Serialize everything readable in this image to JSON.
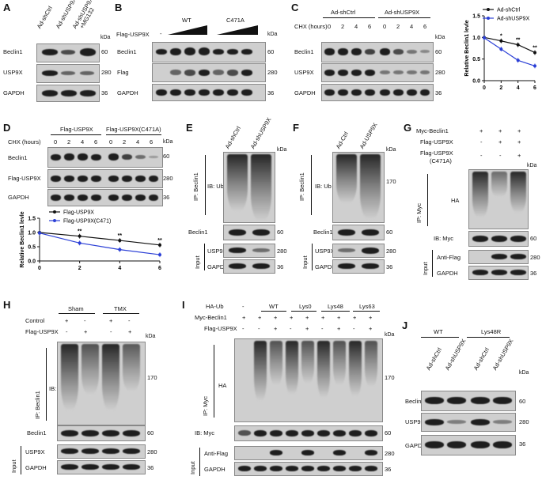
{
  "panels": {
    "A": {
      "letter": "A",
      "lanes": [
        "Ad-shCtrl",
        "Ad-shUSP9X",
        "Ad-shUSP9X\n+MG132"
      ],
      "rows": [
        "Beclin1",
        "USP9X",
        "GAPDH"
      ],
      "kda_label": "kDa",
      "mw": [
        "60",
        "280",
        "36"
      ]
    },
    "B": {
      "letter": "B",
      "flag_label": "Flag-USP9X",
      "minus": "-",
      "wt": "WT",
      "c471a": "C471A",
      "kda_label": "kDa",
      "rows": [
        "Beclin1",
        "Flag",
        "GAPDH"
      ],
      "mw": [
        "60",
        "280",
        "36"
      ]
    },
    "C": {
      "letter": "C",
      "groups": [
        "Ad-shCtrl",
        "Ad-shUSP9X"
      ],
      "chx_label": "CHX (hours)",
      "times": [
        "0",
        "2",
        "4",
        "6",
        "0",
        "2",
        "4",
        "6"
      ],
      "kda_label": "kDa",
      "rows": [
        "Beclin1",
        "USP9X",
        "GAPDH"
      ],
      "mw": [
        "60",
        "280",
        "36"
      ]
    },
    "D": {
      "letter": "D",
      "groups": [
        "Flag-USP9X",
        "Flag-USP9X(C471A)"
      ],
      "chx_label": "CHX (hours)",
      "times": [
        "0",
        "2",
        "4",
        "6",
        "0",
        "2",
        "4",
        "6"
      ],
      "kda_label": "kDa",
      "rows": [
        "Beclin1",
        "Flag-USP9X",
        "GAPDH"
      ],
      "mw": [
        "60",
        "280",
        "36"
      ]
    },
    "E": {
      "letter": "E",
      "lanes": [
        "Ad-shCtrl",
        "Ad-shUSP9X"
      ],
      "kda_label": "kDa",
      "ip": "IP: Beclin1",
      "ib": "IB: Ub",
      "rows": [
        "Beclin1",
        "USP9X",
        "GAPDH"
      ],
      "input": "Input",
      "mw": [
        "60",
        "280",
        "36"
      ]
    },
    "F": {
      "letter": "F",
      "lanes": [
        "Ad-Ctrl",
        "Ad-USP9X"
      ],
      "kda_label": "kDa",
      "ip": "IP: Beclin1",
      "ib": "IB: Ub",
      "mw_top": "170",
      "rows": [
        "Beclin1",
        "USP9X",
        "GAPDH"
      ],
      "input": "Input",
      "mw": [
        "60",
        "280",
        "36"
      ]
    },
    "G": {
      "letter": "G",
      "conds": [
        "Myc-Beclin1",
        "Flag-USP9X",
        "Flag-USP9X",
        "(C471A)"
      ],
      "signs": [
        [
          "+",
          "+",
          "+"
        ],
        [
          "-",
          "+",
          "+"
        ],
        [
          "-",
          "-",
          "+"
        ]
      ],
      "kda_label": "kDa",
      "ip": "IP: Myc",
      "ha": "HA",
      "ib_myc": "IB: Myc",
      "anti_flag": "Anti-Flag",
      "gapdh": "GAPDH",
      "input": "Input",
      "mw": [
        "60",
        "280",
        "36"
      ]
    },
    "H": {
      "letter": "H",
      "groups": [
        "Sham",
        "TMX"
      ],
      "conds": [
        "Control",
        "Flag-USP9X"
      ],
      "signs": [
        [
          "+",
          "-",
          "+",
          "-"
        ],
        [
          "-",
          "+",
          "-",
          "+"
        ]
      ],
      "kda_label": "kDa",
      "ip": "IP: Beclin1",
      "ib": "IB: Ub",
      "mw_top": "170",
      "rows": [
        "Beclin1",
        "USP9X",
        "GAPDH"
      ],
      "input": "Input",
      "mw": [
        "60",
        "280",
        "36"
      ]
    },
    "I": {
      "letter": "I",
      "conds": [
        "HA-Ub",
        "Myc-Beclin1",
        "Flag-USP9X"
      ],
      "groups": [
        "-",
        "WT",
        "Lys0",
        "Lys48",
        "Lys63"
      ],
      "signs": [
        [
          "+",
          "+",
          "+",
          "+",
          "+",
          "+",
          "+",
          "+",
          "+"
        ],
        [
          "-",
          "-",
          "+",
          "-",
          "+",
          "-",
          "+",
          "-",
          "+"
        ]
      ],
      "kda_label": "kDa",
      "ip": "IP: Myc",
      "ha": "HA",
      "mw_top": "170",
      "ib_myc": "IB: Myc",
      "anti_flag": "Anti-Flag",
      "gapdh": "GAPDH",
      "input": "Input",
      "mw": [
        "60",
        "280",
        "36"
      ]
    },
    "J": {
      "letter": "J",
      "groups": [
        "WT",
        "Lys48R"
      ],
      "lanes": [
        "Ad-shCtrl",
        "Ad-shUSP9X",
        "Ad-shCtrl",
        "Ad-shUSP9X"
      ],
      "kda_label": "kDa",
      "rows": [
        "Beclin1",
        "USP9X",
        "GAPDH"
      ],
      "mw": [
        "60",
        "280",
        "36"
      ]
    }
  },
  "chart_data": [
    {
      "type": "line",
      "x": [
        0,
        2,
        4,
        6
      ],
      "xlim": [
        0,
        6
      ],
      "ylim": [
        0.0,
        1.5
      ],
      "yticks": [
        "0.0",
        "0.5",
        "1.0",
        "1.5"
      ],
      "ylabel": "Relative Beclin1 levle",
      "series": [
        {
          "name": "Ad-shCtrl",
          "color": "#111111",
          "values": [
            1.0,
            0.92,
            0.83,
            0.65
          ]
        },
        {
          "name": "Ad-shUSP9X",
          "color": "#2b3fd6",
          "values": [
            0.99,
            0.73,
            0.47,
            0.34
          ]
        }
      ],
      "annotations": [
        "*",
        "**",
        "**"
      ],
      "legend": "top-right"
    },
    {
      "type": "line",
      "x": [
        0,
        2,
        4,
        6
      ],
      "xlim": [
        0,
        6
      ],
      "ylim": [
        0.0,
        1.5
      ],
      "yticks": [
        "0.0",
        "0.5",
        "1.0",
        "1.5"
      ],
      "ylabel": "Relative Beclin1 levle",
      "series": [
        {
          "name": "Flag-USP9X",
          "color": "#111111",
          "values": [
            1.0,
            0.87,
            0.72,
            0.56
          ]
        },
        {
          "name": "Flag-USP9X(C471)",
          "color": "#2b3fd6",
          "values": [
            0.98,
            0.63,
            0.4,
            0.22
          ]
        }
      ],
      "annotations": [
        "**",
        "**",
        "**"
      ],
      "legend": "top-right"
    }
  ]
}
